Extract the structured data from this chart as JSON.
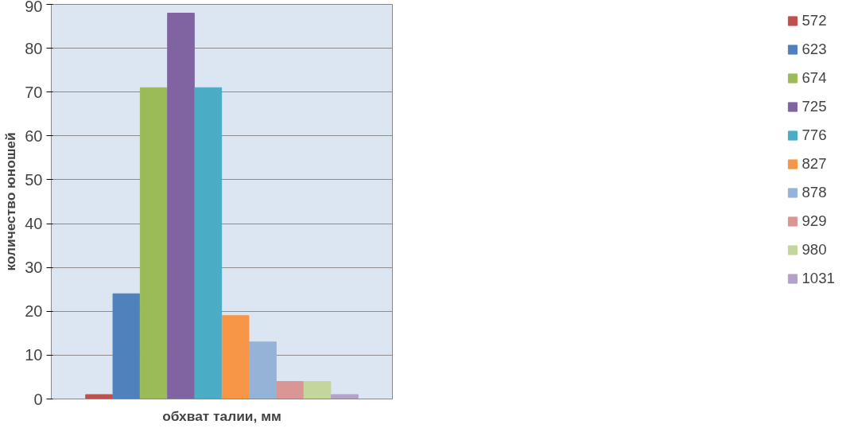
{
  "chart_data": {
    "type": "bar",
    "xlabel": "обхват талии, мм",
    "ylabel": "количество юношей",
    "categories": [
      null
    ],
    "ylim": [
      0,
      90
    ],
    "yticks": [
      0,
      10,
      20,
      30,
      40,
      50,
      60,
      70,
      80,
      90
    ],
    "grid": "y",
    "legend": "right",
    "series": [
      {
        "name": "572",
        "color": "#c0504d",
        "values": [
          1
        ]
      },
      {
        "name": "623",
        "color": "#4f81bd",
        "values": [
          24
        ]
      },
      {
        "name": "674",
        "color": "#9bbb59",
        "values": [
          71
        ]
      },
      {
        "name": "725",
        "color": "#8064a2",
        "values": [
          88
        ]
      },
      {
        "name": "776",
        "color": "#4bacc6",
        "values": [
          71
        ]
      },
      {
        "name": "827",
        "color": "#f79646",
        "values": [
          19
        ]
      },
      {
        "name": "878",
        "color": "#95b3d7",
        "values": [
          13
        ]
      },
      {
        "name": "929",
        "color": "#d99694",
        "values": [
          4
        ]
      },
      {
        "name": "980",
        "color": "#c3d69b",
        "values": [
          4
        ]
      },
      {
        "name": "1031",
        "color": "#b3a2c7",
        "values": [
          1
        ]
      }
    ]
  }
}
